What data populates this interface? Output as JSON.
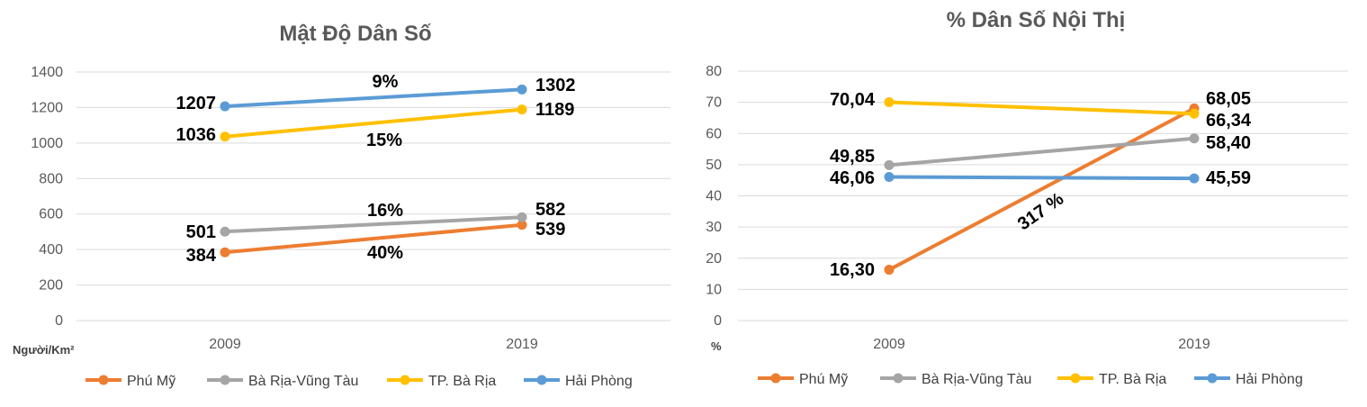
{
  "chart_data": [
    {
      "type": "line",
      "title": "Mật Độ Dân Số",
      "unit_label": "Người/Km²",
      "categories": [
        "2009",
        "2019"
      ],
      "ylim": [
        0,
        1400
      ],
      "yticks": [
        "0",
        "200",
        "400",
        "600",
        "800",
        "1000",
        "1200",
        "1400"
      ],
      "legend_position": "bottom",
      "series": [
        {
          "name": "Phú Mỹ",
          "color": "#ED7D31",
          "values": [
            384,
            539
          ],
          "labels": [
            "384",
            "539"
          ]
        },
        {
          "name": "Bà Rịa-Vũng Tàu",
          "color": "#A5A5A5",
          "values": [
            501,
            582
          ],
          "labels": [
            "501",
            "582"
          ]
        },
        {
          "name": "TP. Bà Rịa",
          "color": "#FFC000",
          "values": [
            1036,
            1189
          ],
          "labels": [
            "1036",
            "1189"
          ]
        },
        {
          "name": "Hải Phòng",
          "color": "#5B9BD5",
          "values": [
            1207,
            1302
          ],
          "labels": [
            "1207",
            "1302"
          ]
        }
      ],
      "annotations": [
        "9%",
        "15%",
        "16%",
        "40%"
      ]
    },
    {
      "type": "line",
      "title": "% Dân Số Nội Thị",
      "unit_label": "%",
      "categories": [
        "2009",
        "2019"
      ],
      "ylim": [
        0,
        80
      ],
      "yticks": [
        "0",
        "10",
        "20",
        "30",
        "40",
        "50",
        "60",
        "70",
        "80"
      ],
      "legend_position": "bottom",
      "series": [
        {
          "name": "Phú Mỹ",
          "color": "#ED7D31",
          "values": [
            16.3,
            68.05
          ],
          "labels": [
            "16,30",
            "68,05"
          ]
        },
        {
          "name": "Bà Rịa-Vũng Tàu",
          "color": "#A5A5A5",
          "values": [
            49.85,
            58.4
          ],
          "labels": [
            "49,85",
            "58,40"
          ]
        },
        {
          "name": "TP. Bà Rịa",
          "color": "#FFC000",
          "values": [
            70.04,
            66.34
          ],
          "labels": [
            "70,04",
            "66,34"
          ]
        },
        {
          "name": "Hải Phòng",
          "color": "#5B9BD5",
          "values": [
            46.06,
            45.59
          ],
          "labels": [
            "46,06",
            "45,59"
          ]
        }
      ],
      "annotations": [
        "317 %"
      ]
    }
  ]
}
